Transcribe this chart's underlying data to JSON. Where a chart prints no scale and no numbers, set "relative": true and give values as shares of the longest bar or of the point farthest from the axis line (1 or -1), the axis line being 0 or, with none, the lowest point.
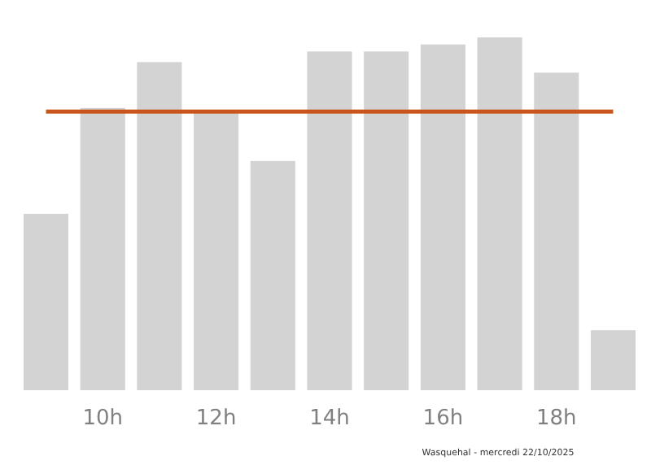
{
  "chart_data": {
    "type": "bar",
    "relative": true,
    "categories": [
      null,
      "10h",
      null,
      "12h",
      null,
      "14h",
      null,
      "16h",
      null,
      "18h",
      null
    ],
    "values": [
      0.5,
      0.8,
      0.93,
      0.79,
      0.65,
      0.96,
      0.96,
      0.98,
      1,
      0.9,
      0.17
    ],
    "color": "#d3d3d3",
    "ref_lines": [
      {
        "axis": "y",
        "value": 0.79,
        "color": "#c8561a"
      }
    ],
    "annotations": [
      "Wasquehal - mercredi 22/10/2025"
    ]
  }
}
